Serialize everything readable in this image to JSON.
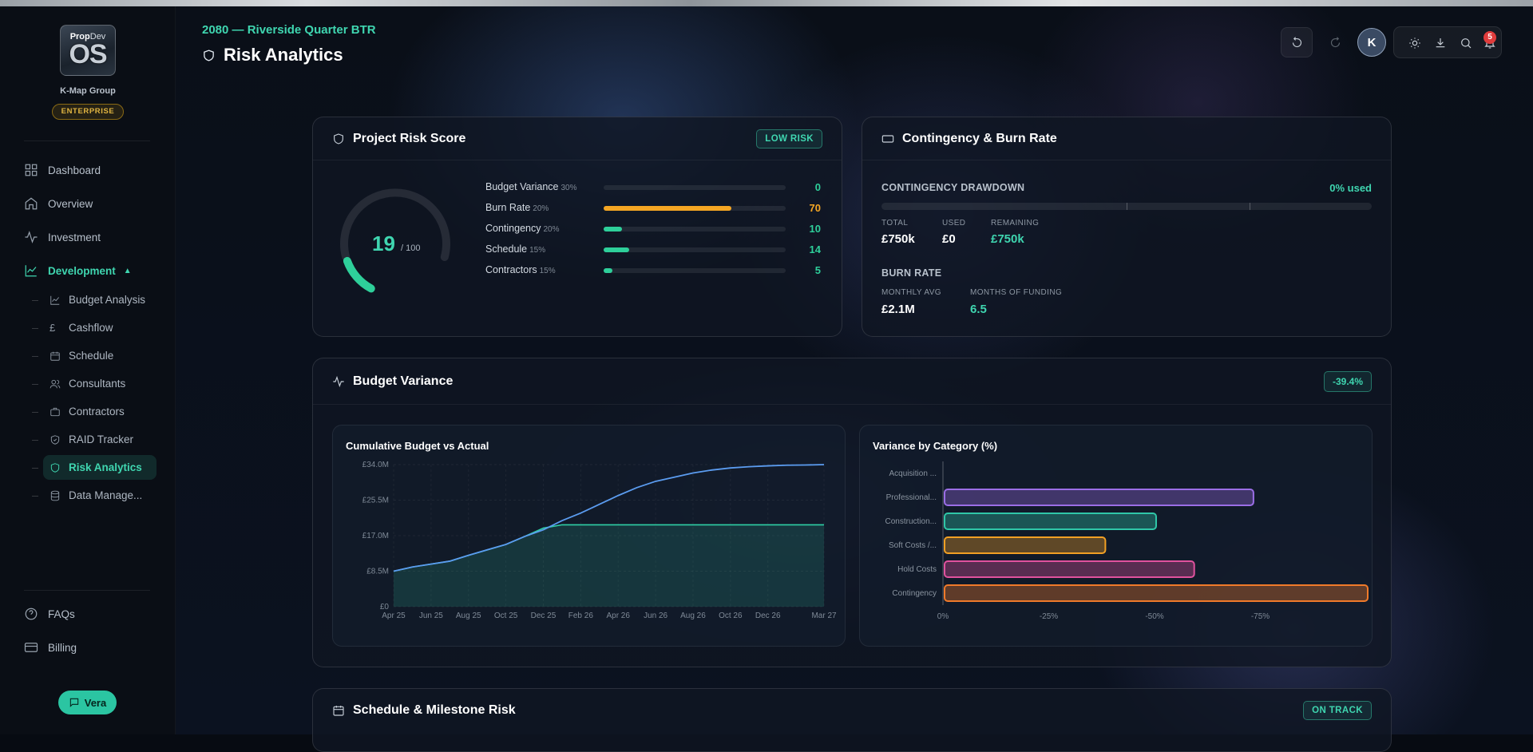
{
  "sidebar": {
    "logo": {
      "line1_a": "Prop",
      "line1_b": "Dev",
      "line2": "OS"
    },
    "org_name": "K-Map Group",
    "tier": "ENTERPRISE",
    "nav": [
      {
        "label": "Dashboard",
        "icon": "grid-icon"
      },
      {
        "label": "Overview",
        "icon": "home-icon"
      },
      {
        "label": "Investment",
        "icon": "activity-icon"
      },
      {
        "label": "Development",
        "icon": "trend-icon",
        "expanded": true
      }
    ],
    "subnav": [
      {
        "label": "Budget Analysis",
        "icon": "chart-line-icon"
      },
      {
        "label": "Cashflow",
        "icon": "pound-icon"
      },
      {
        "label": "Schedule",
        "icon": "calendar-icon"
      },
      {
        "label": "Consultants",
        "icon": "users-icon"
      },
      {
        "label": "Contractors",
        "icon": "briefcase-icon"
      },
      {
        "label": "RAID Tracker",
        "icon": "shield-check-icon"
      },
      {
        "label": "Risk Analytics",
        "icon": "shield-icon",
        "active": true
      },
      {
        "label": "Data Manage...",
        "icon": "database-icon"
      }
    ],
    "footer": [
      {
        "label": "FAQs",
        "icon": "help-icon"
      },
      {
        "label": "Billing",
        "icon": "card-icon"
      }
    ],
    "assistant": "Vera"
  },
  "header": {
    "project": "2080 — Riverside Quarter BTR",
    "title": "Risk Analytics",
    "avatar_initial": "K",
    "notifications": "5"
  },
  "risk_score": {
    "title": "Project Risk Score",
    "badge": "LOW RISK",
    "score": 19,
    "score_display": "19",
    "max_display": "/ 100",
    "factors": [
      {
        "name": "Budget Variance",
        "weight": "30%",
        "value": 0,
        "display": "0",
        "color": "#2ecf9a"
      },
      {
        "name": "Burn Rate",
        "weight": "20%",
        "value": 70,
        "display": "70",
        "color": "#f5a623"
      },
      {
        "name": "Contingency",
        "weight": "20%",
        "value": 10,
        "display": "10",
        "color": "#2ecf9a"
      },
      {
        "name": "Schedule",
        "weight": "15%",
        "value": 14,
        "display": "14",
        "color": "#2ecf9a"
      },
      {
        "name": "Contractors",
        "weight": "15%",
        "value": 5,
        "display": "5",
        "color": "#2ecf9a"
      }
    ]
  },
  "contingency": {
    "title": "Contingency & Burn Rate",
    "drawdown_label": "CONTINGENCY DRAWDOWN",
    "used_pct": "0% used",
    "stats": [
      {
        "label": "TOTAL",
        "value": "£750k"
      },
      {
        "label": "USED",
        "value": "£0"
      },
      {
        "label": "REMAINING",
        "value": "£750k"
      }
    ],
    "burn_label": "BURN RATE",
    "burn_stats": [
      {
        "label": "MONTHLY AVG",
        "value": "£2.1M"
      },
      {
        "label": "MONTHS OF FUNDING",
        "value": "6.5"
      }
    ]
  },
  "budget_variance": {
    "title": "Budget Variance",
    "badge": "-39.4%",
    "line_title": "Cumulative Budget vs Actual",
    "bar_title": "Variance by Category (%)"
  },
  "schedule": {
    "title": "Schedule & Milestone Risk",
    "badge": "ON TRACK"
  },
  "chart_data": [
    {
      "type": "line",
      "title": "Cumulative Budget vs Actual",
      "x": [
        "Apr 25",
        "May 25",
        "Jun 25",
        "Jul 25",
        "Aug 25",
        "Sep 25",
        "Oct 25",
        "Nov 25",
        "Dec 25",
        "Jan 26",
        "Feb 26",
        "Mar 26",
        "Apr 26",
        "May 26",
        "Jun 26",
        "Jul 26",
        "Aug 26",
        "Sep 26",
        "Oct 26",
        "Nov 26",
        "Dec 26",
        "Jan 27",
        "Feb 27",
        "Mar 27"
      ],
      "xticks": [
        "Apr 25",
        "Jun 25",
        "Aug 25",
        "Oct 25",
        "Dec 25",
        "Feb 26",
        "Apr 26",
        "Jun 26",
        "Aug 26",
        "Oct 26",
        "Dec 26",
        "Mar 27"
      ],
      "yticks": [
        "£0",
        "£8.5M",
        "£17.0M",
        "£25.5M",
        "£34.0M"
      ],
      "ylim": [
        0,
        34
      ],
      "series": [
        {
          "color": "#5b9cf0",
          "values": [
            8.5,
            9.5,
            10.2,
            10.9,
            12.3,
            13.6,
            14.9,
            16.8,
            18.4,
            20.6,
            22.4,
            24.5,
            26.6,
            28.5,
            30.0,
            31.0,
            32.0,
            32.7,
            33.2,
            33.5,
            33.7,
            33.85,
            33.9,
            34.0
          ]
        },
        {
          "color": "#2fcfa6",
          "values": [
            8.5,
            9.5,
            10.2,
            10.9,
            12.3,
            13.6,
            14.9,
            16.8,
            18.8,
            19.6,
            19.6,
            19.6,
            19.6,
            19.6,
            19.6,
            19.6,
            19.6,
            19.6,
            19.6,
            19.6,
            19.6,
            19.6,
            19.6,
            19.6
          ]
        }
      ]
    },
    {
      "type": "bar",
      "orientation": "horizontal",
      "title": "Variance by Category (%)",
      "categories": [
        "Acquisition ...",
        "Professional...",
        "Construction...",
        "Soft Costs /...",
        "Hold Costs",
        "Contingency"
      ],
      "values": [
        0,
        -73,
        -50,
        -38,
        -59,
        -100
      ],
      "colors": [
        "#8b8f98",
        "#9b6ee6",
        "#2fc6a8",
        "#f2a024",
        "#e0529e",
        "#f07a2a"
      ],
      "xticks": [
        "0%",
        "-25%",
        "-50%",
        "-75%"
      ],
      "xlim": [
        0,
        -100
      ]
    }
  ]
}
